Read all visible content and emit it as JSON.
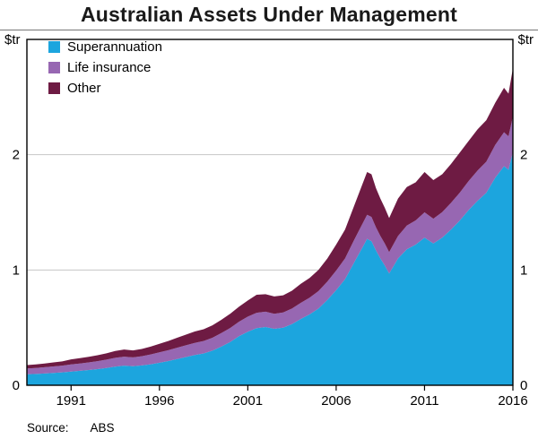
{
  "title": "Australian Assets Under Management",
  "units": {
    "left": "$tr",
    "right": "$tr"
  },
  "footer": {
    "source_label": "Source:",
    "source_value": "ABS"
  },
  "chart_data": {
    "type": "area",
    "stacked": true,
    "title": "Australian Assets Under Management",
    "ylabel": "$tr",
    "grid": true,
    "legend_position": "top-left",
    "xlim": [
      1988.5,
      2016
    ],
    "ylim": [
      0,
      3
    ],
    "yticks": [
      0,
      1,
      2
    ],
    "xticks": [
      1991,
      1996,
      2001,
      2006,
      2011,
      2016
    ],
    "gridlines": [
      1,
      2
    ],
    "colors": {
      "grid": "#c6c6c6",
      "axis": "#000000"
    },
    "x": [
      1988.5,
      1989,
      1989.5,
      1990,
      1990.5,
      1991,
      1991.5,
      1992,
      1992.5,
      1993,
      1993.5,
      1994,
      1994.5,
      1995,
      1995.5,
      1996,
      1996.5,
      1997,
      1997.5,
      1998,
      1998.5,
      1999,
      1999.5,
      2000,
      2000.5,
      2001,
      2001.5,
      2002,
      2002.5,
      2003,
      2003.5,
      2004,
      2004.5,
      2005,
      2005.5,
      2006,
      2006.5,
      2007,
      2007.5,
      2007.75,
      2008,
      2008.25,
      2008.5,
      2008.75,
      2009,
      2009.5,
      2010,
      2010.5,
      2011,
      2011.5,
      2012,
      2012.5,
      2013,
      2013.5,
      2014,
      2014.5,
      2015,
      2015.5,
      2015.75,
      2016
    ],
    "series": [
      {
        "id": "superannuation",
        "name": "Superannuation",
        "color": "#1CA5DE",
        "values": [
          0.095,
          0.098,
          0.102,
          0.107,
          0.112,
          0.118,
          0.125,
          0.132,
          0.14,
          0.15,
          0.162,
          0.17,
          0.165,
          0.172,
          0.182,
          0.195,
          0.21,
          0.228,
          0.245,
          0.262,
          0.276,
          0.3,
          0.335,
          0.375,
          0.425,
          0.465,
          0.495,
          0.505,
          0.49,
          0.5,
          0.53,
          0.575,
          0.615,
          0.665,
          0.74,
          0.825,
          0.92,
          1.06,
          1.2,
          1.27,
          1.25,
          1.17,
          1.1,
          1.04,
          0.97,
          1.1,
          1.18,
          1.22,
          1.28,
          1.23,
          1.28,
          1.35,
          1.43,
          1.52,
          1.6,
          1.67,
          1.8,
          1.9,
          1.87,
          2.02
        ]
      },
      {
        "id": "life-insurance",
        "name": "Life insurance",
        "color": "#9767B2",
        "values": [
          0.05,
          0.052,
          0.054,
          0.056,
          0.058,
          0.062,
          0.064,
          0.066,
          0.069,
          0.072,
          0.076,
          0.078,
          0.077,
          0.08,
          0.085,
          0.09,
          0.094,
          0.098,
          0.102,
          0.106,
          0.108,
          0.112,
          0.117,
          0.122,
          0.126,
          0.13,
          0.134,
          0.133,
          0.13,
          0.131,
          0.135,
          0.14,
          0.145,
          0.152,
          0.16,
          0.17,
          0.18,
          0.195,
          0.205,
          0.208,
          0.21,
          0.2,
          0.195,
          0.19,
          0.185,
          0.195,
          0.205,
          0.21,
          0.22,
          0.215,
          0.222,
          0.232,
          0.242,
          0.252,
          0.262,
          0.27,
          0.285,
          0.295,
          0.29,
          0.31
        ]
      },
      {
        "id": "other",
        "name": "Other",
        "color": "#6E1B43",
        "values": [
          0.03,
          0.031,
          0.033,
          0.035,
          0.037,
          0.045,
          0.046,
          0.048,
          0.051,
          0.055,
          0.06,
          0.062,
          0.06,
          0.063,
          0.068,
          0.075,
          0.08,
          0.086,
          0.092,
          0.098,
          0.102,
          0.108,
          0.115,
          0.123,
          0.13,
          0.14,
          0.156,
          0.152,
          0.15,
          0.149,
          0.155,
          0.165,
          0.17,
          0.183,
          0.2,
          0.225,
          0.25,
          0.295,
          0.345,
          0.372,
          0.37,
          0.34,
          0.325,
          0.31,
          0.295,
          0.325,
          0.335,
          0.33,
          0.35,
          0.335,
          0.328,
          0.338,
          0.348,
          0.348,
          0.358,
          0.36,
          0.365,
          0.385,
          0.37,
          0.42
        ]
      }
    ]
  }
}
